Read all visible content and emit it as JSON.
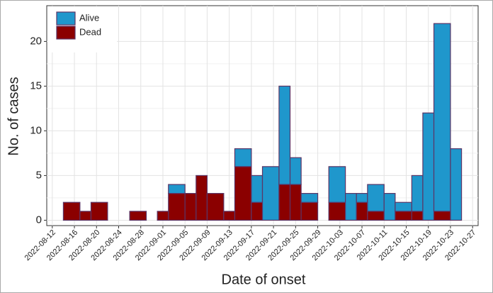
{
  "chart_data": {
    "type": "histogram",
    "xlabel": "Date of onset",
    "ylabel": "No. of cases",
    "bins": [
      "2022-08-14",
      "2022-08-17",
      "2022-08-19",
      "2022-08-22",
      "2022-08-24",
      "2022-08-26",
      "2022-08-29",
      "2022-08-31",
      "2022-09-02",
      "2022-09-05",
      "2022-09-07",
      "2022-09-09",
      "2022-09-12",
      "2022-09-14",
      "2022-09-17",
      "2022-09-19",
      "2022-09-22",
      "2022-09-24",
      "2022-09-26",
      "2022-09-29",
      "2022-10-01",
      "2022-10-04",
      "2022-10-06",
      "2022-10-08",
      "2022-10-11",
      "2022-10-13",
      "2022-10-16",
      "2022-10-18",
      "2022-10-20",
      "2022-10-23",
      "2022-10-25"
    ],
    "series": [
      {
        "name": "Alive",
        "color": "#1f97cc",
        "values": [
          0,
          0,
          0,
          0,
          0,
          0,
          0,
          0,
          1,
          0,
          0,
          0,
          0,
          2,
          3,
          6,
          11,
          3,
          1,
          0,
          4,
          3,
          1,
          3,
          3,
          1,
          4,
          12,
          21,
          8
        ]
      },
      {
        "name": "Dead",
        "color": "#8b0000",
        "values": [
          2,
          1,
          2,
          0,
          0,
          1,
          0,
          1,
          3,
          3,
          5,
          3,
          1,
          6,
          2,
          0,
          4,
          4,
          2,
          0,
          2,
          0,
          2,
          1,
          0,
          1,
          1,
          0,
          1,
          0
        ]
      }
    ],
    "stacked": true,
    "xlim": [
      "2022-08-11",
      "2022-10-28"
    ],
    "xticks": [
      "2022-08-12",
      "2022-08-16",
      "2022-08-20",
      "2022-08-24",
      "2022-08-28",
      "2022-09-01",
      "2022-09-05",
      "2022-09-09",
      "2022-09-13",
      "2022-09-17",
      "2022-09-21",
      "2022-09-25",
      "2022-09-29",
      "2022-10-03",
      "2022-10-07",
      "2022-10-11",
      "2022-10-15",
      "2022-10-19",
      "2022-10-23",
      "2022-10-27"
    ],
    "ylim": [
      -0.6,
      24
    ],
    "yticks": [
      0,
      5,
      10,
      15,
      20
    ],
    "grid": true,
    "legend": "top-left"
  }
}
